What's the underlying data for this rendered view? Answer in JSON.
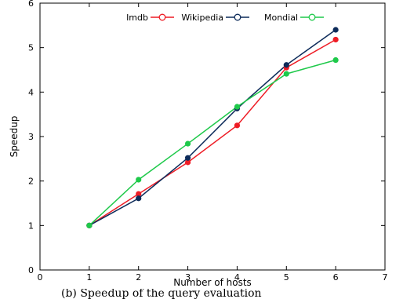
{
  "chart_data": {
    "type": "line",
    "xlabel": "Number of hosts",
    "ylabel": "Speedup",
    "xlim": [
      0,
      7
    ],
    "ylim": [
      0,
      6
    ],
    "x_ticks": [
      0,
      1,
      2,
      3,
      4,
      5,
      6,
      7
    ],
    "y_ticks": [
      0,
      1,
      2,
      3,
      4,
      5,
      6
    ],
    "grid": false,
    "legend_position": "top",
    "x": [
      1,
      2,
      3,
      4,
      5,
      6
    ],
    "series": [
      {
        "name": "Imdb",
        "color": "#ee1c25",
        "values": [
          1.0,
          1.71,
          2.42,
          3.25,
          4.55,
          5.18
        ]
      },
      {
        "name": "Wikipedia",
        "color": "#0d2b5a",
        "values": [
          1.0,
          1.61,
          2.52,
          3.63,
          4.61,
          5.4
        ]
      },
      {
        "name": "Mondial",
        "color": "#1ec94a",
        "values": [
          1.0,
          2.03,
          2.84,
          3.67,
          4.41,
          4.72
        ]
      }
    ]
  },
  "caption": "(b) Speedup of the query evaluation"
}
